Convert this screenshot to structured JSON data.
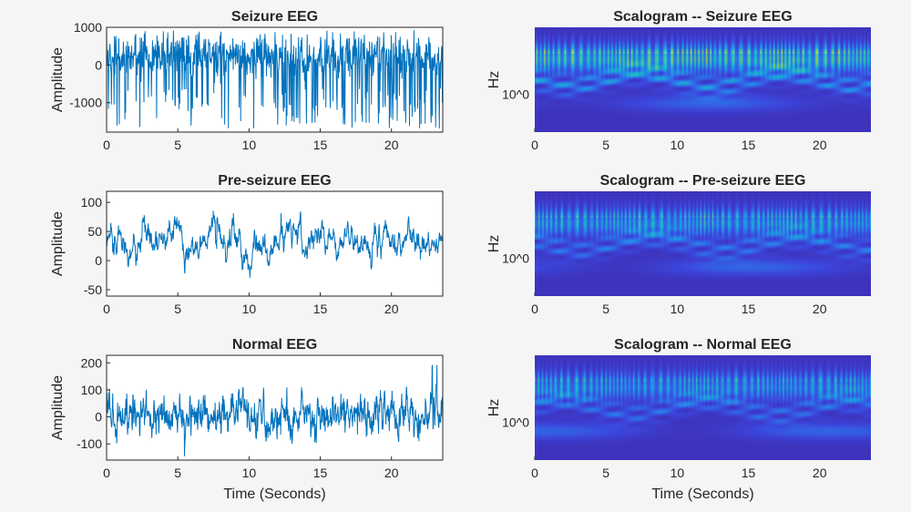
{
  "colors": {
    "line": "#0072bd",
    "axis": "#262626",
    "background": "#f5f5f5",
    "colormap": "parula"
  },
  "chart_data": [
    {
      "type": "line",
      "title": "Seizure EEG",
      "xlabel": "",
      "ylabel": "Amplitude",
      "xlim": [
        0,
        23.6
      ],
      "ylim": [
        -1780,
        1000
      ],
      "xticks": [
        0,
        5,
        10,
        15,
        20
      ],
      "yticks": [
        -1000,
        0,
        1000
      ],
      "ytick_labels": [
        "-1000",
        "0",
        "1000"
      ],
      "grid": false
    },
    {
      "type": "line",
      "title": "Pre-seizure EEG",
      "xlabel": "",
      "ylabel": "Amplitude",
      "xlim": [
        0,
        23.6
      ],
      "ylim": [
        -61,
        119
      ],
      "xticks": [
        0,
        5,
        10,
        15,
        20
      ],
      "yticks": [
        -50,
        0,
        50,
        100
      ],
      "ytick_labels": [
        "-50",
        "0",
        "50",
        "100"
      ],
      "grid": false
    },
    {
      "type": "line",
      "title": "Normal EEG",
      "xlabel": "Time (Seconds)",
      "ylabel": "Amplitude",
      "xlim": [
        0,
        23.6
      ],
      "ylim": [
        -160,
        228
      ],
      "xticks": [
        0,
        5,
        10,
        15,
        20
      ],
      "yticks": [
        -100,
        0,
        100,
        200
      ],
      "ytick_labels": [
        "-100",
        "0",
        "100",
        "200"
      ],
      "grid": false
    },
    {
      "type": "heatmap",
      "title": "Scalogram -- Seizure EEG",
      "xlabel": "",
      "ylabel": "Hz",
      "xlim": [
        0,
        23.6
      ],
      "xticks": [
        0,
        5,
        10,
        15,
        20
      ],
      "ytick_label": "10^0",
      "yscale": "log"
    },
    {
      "type": "heatmap",
      "title": "Scalogram -- Pre-seizure EEG",
      "xlabel": "",
      "ylabel": "Hz",
      "xlim": [
        0,
        23.6
      ],
      "xticks": [
        0,
        5,
        10,
        15,
        20
      ],
      "ytick_label": "10^0",
      "yscale": "log"
    },
    {
      "type": "heatmap",
      "title": "Scalogram -- Normal EEG",
      "xlabel": "Time (Seconds)",
      "ylabel": "Hz",
      "xlim": [
        0,
        23.6
      ],
      "xticks": [
        0,
        5,
        10,
        15,
        20
      ],
      "ytick_label": "10^0",
      "yscale": "log"
    }
  ]
}
